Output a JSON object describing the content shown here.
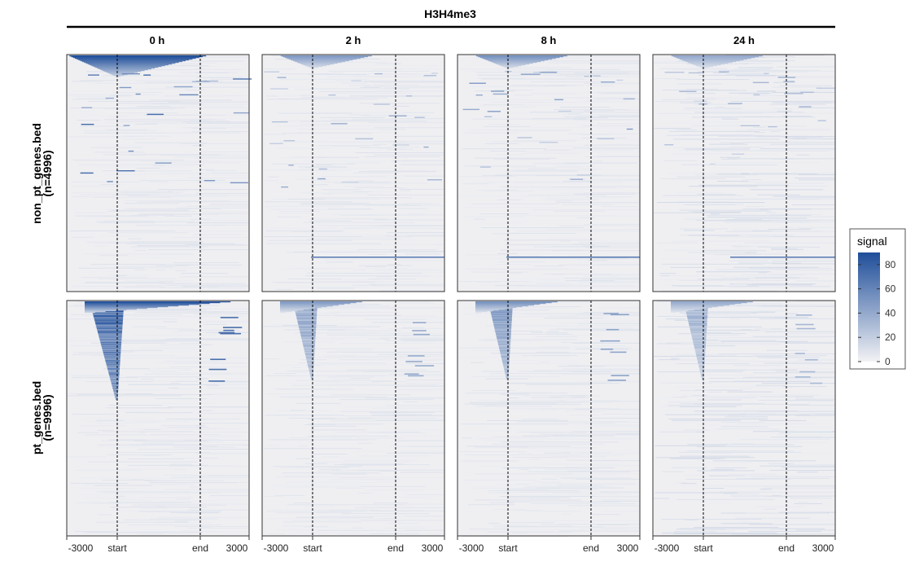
{
  "chart_data": {
    "type": "heatmap",
    "title": "H3H4me3",
    "columns": [
      "0 h",
      "2 h",
      "8 h",
      "24 h"
    ],
    "rows": [
      {
        "label": "non_pt_genes.bed",
        "count": "(n=4996)"
      },
      {
        "label": "pt_genes.bed",
        "count": "(n=9996)"
      }
    ],
    "x_ticks": [
      "-3000",
      "start",
      "end",
      "3000"
    ],
    "dashed_reference_lines": [
      "start",
      "end"
    ],
    "legend": {
      "title": "signal",
      "placement": "right",
      "range": [
        0,
        90
      ],
      "ticks": [
        "80",
        "60",
        "40",
        "20",
        "0"
      ],
      "low_color": "#f2f2f4",
      "high_color": "#1f4e9a"
    },
    "panel_background": "#efeff2",
    "grid": false
  }
}
